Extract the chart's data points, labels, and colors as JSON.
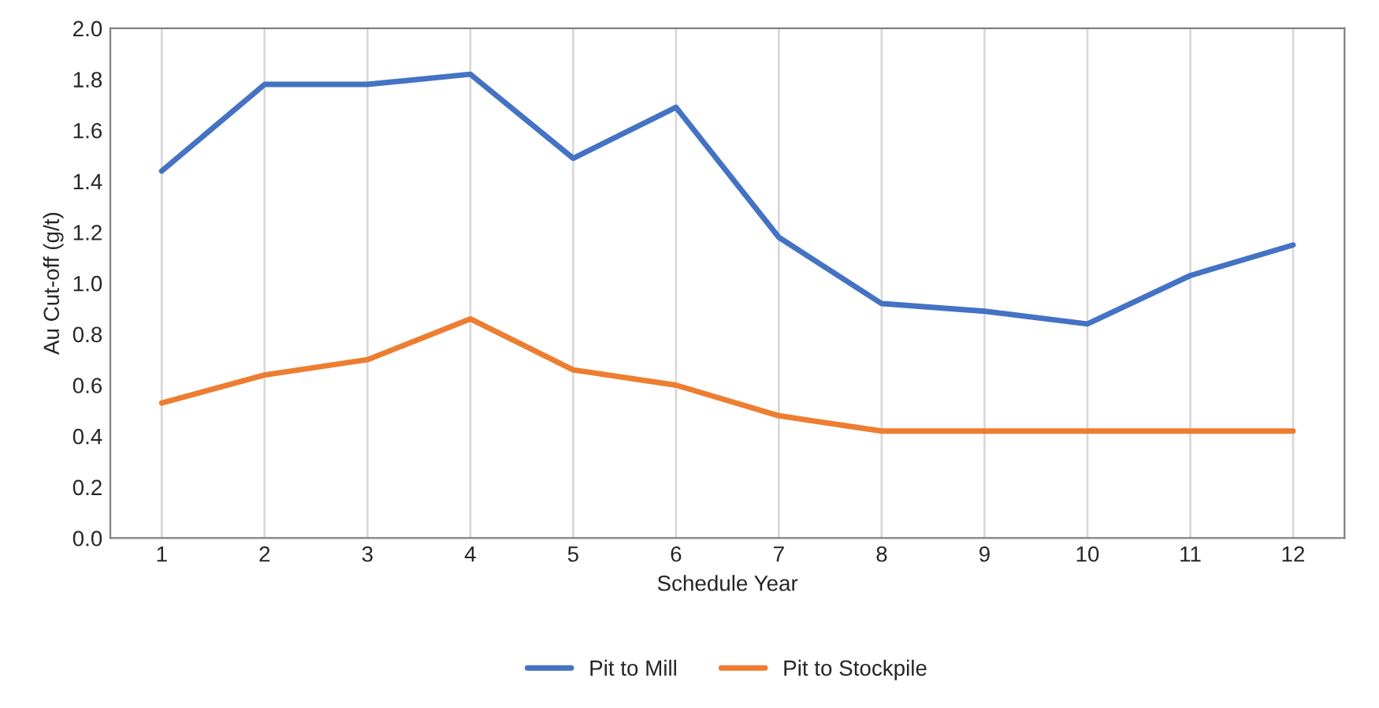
{
  "chart_data": {
    "type": "line",
    "xlabel": "Schedule Year",
    "ylabel": "Au Cut-off (g/t)",
    "categories": [
      "1",
      "2",
      "3",
      "4",
      "5",
      "6",
      "7",
      "8",
      "9",
      "10",
      "11",
      "12"
    ],
    "series": [
      {
        "name": "Pit to Mill",
        "color": "#4472c4",
        "values": [
          1.44,
          1.78,
          1.78,
          1.82,
          1.49,
          1.69,
          1.18,
          0.92,
          0.89,
          0.84,
          1.03,
          1.15
        ]
      },
      {
        "name": "Pit to Stockpile",
        "color": "#ed7d31",
        "values": [
          0.53,
          0.64,
          0.7,
          0.86,
          0.66,
          0.6,
          0.48,
          0.42,
          0.42,
          0.42,
          0.42,
          0.42
        ]
      }
    ],
    "ylim": [
      0,
      2.0
    ],
    "yticks": [
      {
        "value": 0,
        "label": "0.0"
      },
      {
        "value": 0.2,
        "label": "0.2"
      },
      {
        "value": 0.4,
        "label": "0.4"
      },
      {
        "value": 0.6,
        "label": "0.6"
      },
      {
        "value": 0.8,
        "label": "0.8"
      },
      {
        "value": 1.0,
        "label": "1.0"
      },
      {
        "value": 1.2,
        "label": "1.2"
      },
      {
        "value": 1.4,
        "label": "1.4"
      },
      {
        "value": 1.6,
        "label": "1.6"
      },
      {
        "value": 1.8,
        "label": "1.8"
      },
      {
        "value": 2.0,
        "label": "2.0"
      }
    ],
    "grid": "x",
    "legend": "bottom",
    "marker": "none",
    "line_style": "solid"
  }
}
